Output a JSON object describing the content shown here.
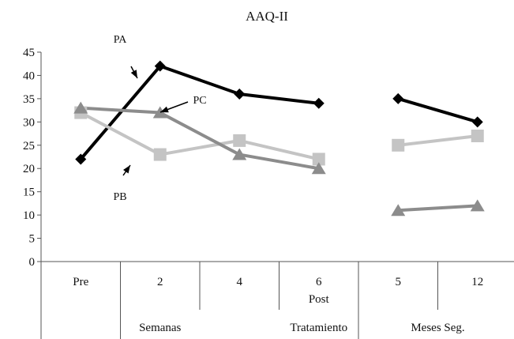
{
  "chart_data": {
    "type": "line",
    "title": "AAQ-II",
    "categories": [
      "Pre",
      "2",
      "4",
      "6",
      "5",
      "12"
    ],
    "category_sublabels": [
      "",
      "",
      "",
      "Post",
      "",
      ""
    ],
    "group_labels": [
      "Semanas",
      "Tratamiento",
      "Meses Seg."
    ],
    "ylim": [
      0,
      45
    ],
    "yticks": [
      "0",
      "5",
      "10",
      "15",
      "20",
      "25",
      "30",
      "35",
      "40",
      "45"
    ],
    "grid": false,
    "legend": "none (series labelled with arrows)",
    "series": [
      {
        "name": "PA",
        "color": "#000000",
        "marker": "diamond",
        "values": [
          22,
          42,
          36,
          34,
          35,
          30
        ]
      },
      {
        "name": "PB",
        "color": "#c4c4c4",
        "marker": "square",
        "values": [
          32,
          23,
          26,
          22,
          25,
          27
        ]
      },
      {
        "name": "PC",
        "color": "#8c8c8c",
        "marker": "triangle",
        "values": [
          33,
          32,
          23,
          20,
          11,
          12
        ]
      }
    ],
    "segment_breaks": [
      [
        0,
        3
      ],
      [
        4,
        5
      ]
    ]
  }
}
